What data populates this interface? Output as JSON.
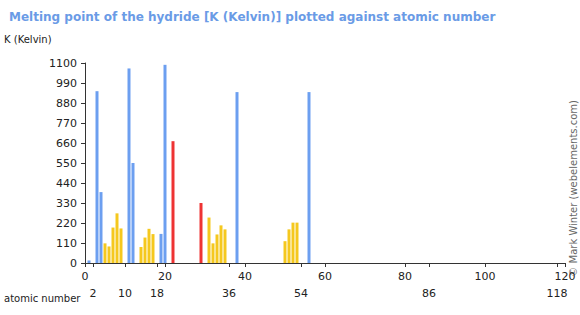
{
  "chart_data": {
    "type": "bar",
    "title": "Melting point of the hydride [K (Kelvin)] plotted against atomic number",
    "x_label": "atomic number",
    "y_label": "K (Kelvin)",
    "annotations": [
      "© Mark Winter (webelements.com)"
    ],
    "x": [
      1,
      3,
      4,
      5,
      6,
      7,
      8,
      9,
      11,
      12,
      14,
      15,
      16,
      17,
      19,
      20,
      22,
      29,
      31,
      32,
      33,
      34,
      35,
      38,
      50,
      51,
      52,
      53,
      56
    ],
    "values": [
      14,
      945,
      390,
      108,
      91,
      195,
      273,
      190,
      1070,
      550,
      88,
      140,
      188,
      159,
      160,
      1090,
      670,
      330,
      250,
      108,
      157,
      207,
      185,
      940,
      120,
      185,
      222,
      222,
      940
    ],
    "colors": [
      "#6c9ff0",
      "#6c9ff0",
      "#6c9ff0",
      "#f5c81e",
      "#f5c81e",
      "#f5c81e",
      "#f5c81e",
      "#f5c81e",
      "#6c9ff0",
      "#6c9ff0",
      "#f5c81e",
      "#f5c81e",
      "#f5c81e",
      "#f5c81e",
      "#6c9ff0",
      "#6c9ff0",
      "#ee3333",
      "#ee3333",
      "#f5c81e",
      "#f5c81e",
      "#f5c81e",
      "#f5c81e",
      "#f5c81e",
      "#6c9ff0",
      "#f5c81e",
      "#f5c81e",
      "#f5c81e",
      "#f5c81e",
      "#6c9ff0"
    ],
    "xlim": [
      0,
      120
    ],
    "xticks": [
      0,
      2,
      10,
      18,
      20,
      36,
      40,
      54,
      60,
      80,
      86,
      100,
      118,
      120
    ],
    "ylim": [
      0,
      1100
    ],
    "yticks": [
      0,
      110,
      220,
      330,
      440,
      550,
      660,
      770,
      880,
      990,
      1100
    ],
    "grid": false
  }
}
